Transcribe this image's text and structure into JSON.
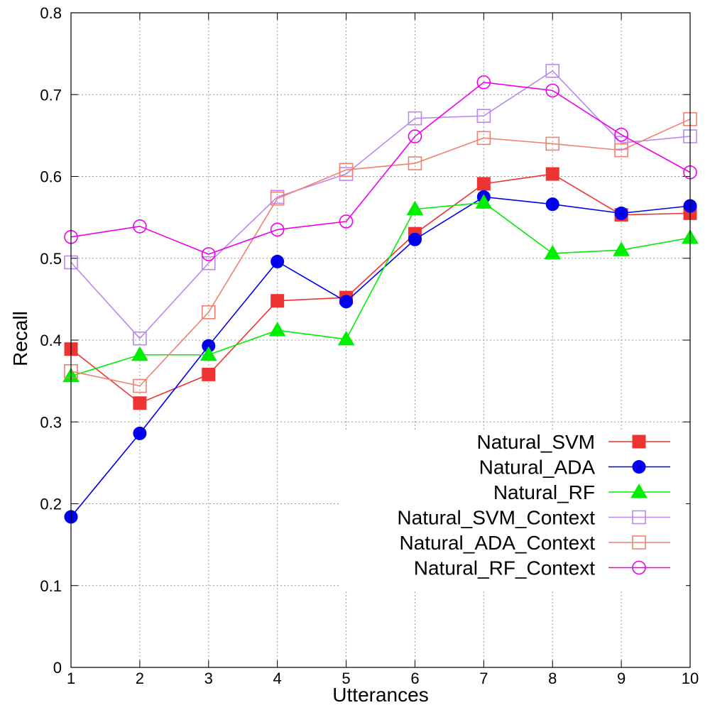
{
  "chart_data": {
    "type": "line",
    "title": "",
    "xlabel": "Utterances",
    "ylabel": "Recall",
    "x": [
      1,
      2,
      3,
      4,
      5,
      6,
      7,
      8,
      9,
      10
    ],
    "xticks": [
      1,
      2,
      3,
      4,
      5,
      6,
      7,
      8,
      9,
      10
    ],
    "yticks": [
      "0",
      "0.1",
      "0.2",
      "0.3",
      "0.4",
      "0.5",
      "0.6",
      "0.7",
      "0.8"
    ],
    "xlim": [
      1,
      10
    ],
    "ylim": [
      0,
      0.8
    ],
    "grid": true,
    "legend_position": "bottom-right",
    "series": [
      {
        "name": "Natural_SVM",
        "color": "#ee3333",
        "marker": "filled-square",
        "values": [
          0.389,
          0.323,
          0.358,
          0.448,
          0.452,
          0.53,
          0.591,
          0.603,
          0.553,
          0.555
        ]
      },
      {
        "name": "Natural_ADA",
        "color": "#0000ee",
        "marker": "filled-circle",
        "values": [
          0.184,
          0.286,
          0.393,
          0.496,
          0.447,
          0.523,
          0.575,
          0.566,
          0.555,
          0.564
        ]
      },
      {
        "name": "Natural_RF",
        "color": "#00ee00",
        "marker": "filled-triangle",
        "values": [
          0.356,
          0.382,
          0.382,
          0.412,
          0.401,
          0.56,
          0.568,
          0.506,
          0.51,
          0.525
        ]
      },
      {
        "name": "Natural_SVM_Context",
        "color": "#bb88ee",
        "marker": "open-square",
        "values": [
          0.495,
          0.402,
          0.494,
          0.575,
          0.603,
          0.671,
          0.674,
          0.729,
          0.641,
          0.649
        ]
      },
      {
        "name": "Natural_ADA_Context",
        "color": "#f08070",
        "marker": "open-square",
        "values": [
          0.362,
          0.344,
          0.434,
          0.573,
          0.608,
          0.616,
          0.647,
          0.64,
          0.632,
          0.67
        ]
      },
      {
        "name": "Natural_RF_Context",
        "color": "#ee00ee",
        "marker": "open-circle",
        "values": [
          0.526,
          0.539,
          0.505,
          0.535,
          0.545,
          0.649,
          0.715,
          0.705,
          0.651,
          0.605
        ]
      }
    ]
  }
}
